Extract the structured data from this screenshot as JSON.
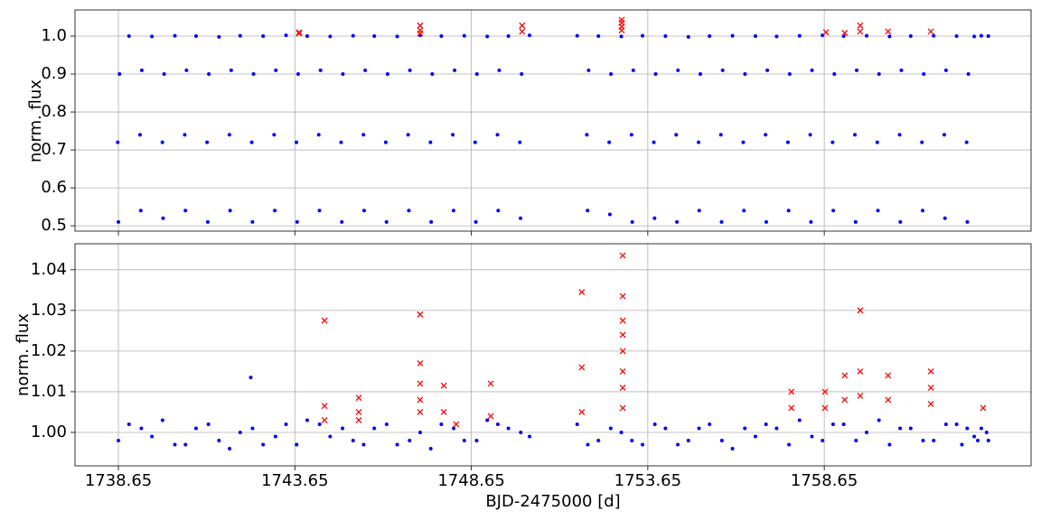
{
  "chart_data": [
    {
      "type": "scatter",
      "ylabel": "norm. flux",
      "xlim": [
        1737.42,
        1764.51
      ],
      "ylim": [
        0.486,
        1.069
      ],
      "xticks": [
        1738.65,
        1743.65,
        1748.65,
        1753.65,
        1758.65
      ],
      "show_xtick_labels": false,
      "yticks": [
        0.5,
        0.6,
        0.7,
        0.8,
        0.9,
        {
          "value": 1,
          "label": "1.0"
        }
      ],
      "grid": true,
      "series": [
        {
          "color": "#0000ff",
          "marker": "dot",
          "x": [
            1738.65,
            1739.283,
            1739.916,
            1740.549,
            1741.182,
            1741.815,
            1742.448,
            1743.081,
            1743.714,
            1744.347,
            1744.98,
            1745.613,
            1746.246,
            1746.879,
            1747.512,
            1748.145,
            1748.778,
            1749.411,
            1750.044,
            1751.943,
            1752.576,
            1753.209,
            1753.842,
            1754.475,
            1755.108,
            1755.741,
            1756.374,
            1757.007,
            1757.64,
            1758.273,
            1758.906,
            1759.539,
            1760.172,
            1760.805,
            1761.438,
            1762.071,
            1762.704,
            1738.63,
            1739.263,
            1739.896,
            1740.529,
            1741.162,
            1741.795,
            1742.428,
            1743.061,
            1743.694,
            1744.327,
            1744.96,
            1745.593,
            1746.226,
            1746.859,
            1747.492,
            1748.125,
            1748.758,
            1749.391,
            1750.024,
            1751.923,
            1752.556,
            1753.189,
            1753.822,
            1754.455,
            1755.088,
            1755.721,
            1756.354,
            1756.987,
            1757.62,
            1758.253,
            1758.886,
            1759.519,
            1760.152,
            1760.785,
            1761.418,
            1762.051,
            1762.684,
            1738.68,
            1739.313,
            1739.946,
            1740.579,
            1741.212,
            1741.845,
            1742.478,
            1743.111,
            1743.744,
            1744.377,
            1745.01,
            1745.643,
            1746.276,
            1746.909,
            1747.542,
            1748.175,
            1748.808,
            1749.441,
            1750.074,
            1751.973,
            1752.606,
            1753.239,
            1753.872,
            1754.505,
            1755.138,
            1755.771,
            1756.404,
            1757.037,
            1757.67,
            1758.303,
            1758.936,
            1759.569,
            1760.202,
            1760.835,
            1761.468,
            1762.101,
            1762.734,
            1738.95,
            1739.6,
            1740.25,
            1740.85,
            1741.5,
            1742.1,
            1742.75,
            1743.4,
            1744.0,
            1744.65,
            1745.3,
            1745.9,
            1746.55,
            1747.2,
            1747.8,
            1748.45,
            1749.1,
            1749.7,
            1750.3,
            1751.65,
            1752.25,
            1752.9,
            1753.5,
            1754.15,
            1754.8,
            1755.4,
            1756.05,
            1756.7,
            1757.3,
            1757.95,
            1758.6,
            1759.2,
            1759.85,
            1760.5,
            1761.1,
            1761.75,
            1762.4,
            1762.9,
            1763.1,
            1763.3
          ],
          "values": [
            0.51,
            0.54,
            0.52,
            0.54,
            0.51,
            0.54,
            0.51,
            0.54,
            0.51,
            0.54,
            0.51,
            0.54,
            0.51,
            0.54,
            0.51,
            0.54,
            0.51,
            0.54,
            0.52,
            0.54,
            0.53,
            0.51,
            0.52,
            0.51,
            0.54,
            0.51,
            0.54,
            0.51,
            0.54,
            0.51,
            0.54,
            0.51,
            0.54,
            0.51,
            0.54,
            0.52,
            0.51,
            0.72,
            0.74,
            0.72,
            0.74,
            0.72,
            0.74,
            0.72,
            0.74,
            0.72,
            0.74,
            0.72,
            0.74,
            0.72,
            0.74,
            0.72,
            0.74,
            0.72,
            0.74,
            0.72,
            0.74,
            0.72,
            0.74,
            0.72,
            0.74,
            0.72,
            0.74,
            0.72,
            0.74,
            0.72,
            0.74,
            0.72,
            0.74,
            0.72,
            0.74,
            0.72,
            0.74,
            0.72,
            0.9,
            0.91,
            0.9,
            0.91,
            0.9,
            0.91,
            0.9,
            0.91,
            0.9,
            0.91,
            0.9,
            0.91,
            0.9,
            0.91,
            0.9,
            0.91,
            0.9,
            0.91,
            0.9,
            0.91,
            0.9,
            0.91,
            0.9,
            0.91,
            0.9,
            0.91,
            0.9,
            0.91,
            0.9,
            0.91,
            0.9,
            0.91,
            0.9,
            0.91,
            0.9,
            0.91,
            0.9,
            1.0,
            0.999,
            1.001,
            1.0,
            0.998,
            1.001,
            1.0,
            1.002,
            1.0,
            0.999,
            1.001,
            1.0,
            0.999,
            1.002,
            1.0,
            1.001,
            0.999,
            1.0,
            1.002,
            1.001,
            1.0,
            0.999,
            1.001,
            1.0,
            0.998,
            1.0,
            1.001,
            1.0,
            0.999,
            1.001,
            1.002,
            1.0,
            1.001,
            0.999,
            1.0,
            1.001,
            1.0,
            0.999,
            1.001,
            1.0
          ]
        },
        {
          "color": "#ff0000",
          "marker": "x",
          "x": [
            1743.77,
            1743.77,
            1747.2,
            1747.2,
            1747.2,
            1750.09,
            1750.09,
            1752.91,
            1752.91,
            1752.91,
            1752.91,
            1758.7,
            1759.23,
            1759.67,
            1759.67,
            1760.46,
            1761.67
          ],
          "values": [
            1.01,
            1.007,
            1.028,
            1.015,
            1.007,
            1.028,
            1.012,
            1.043,
            1.035,
            1.025,
            1.015,
            1.01,
            1.008,
            1.028,
            1.012,
            1.012,
            1.012
          ]
        }
      ]
    },
    {
      "type": "scatter",
      "xlabel": "BJD-2475000 [d]",
      "ylabel": "norm. flux",
      "xlim": [
        1737.42,
        1764.51
      ],
      "ylim": [
        0.99178,
        1.0464
      ],
      "xticks": [
        1738.65,
        1743.65,
        1748.65,
        1753.65,
        1758.65
      ],
      "show_xtick_labels": true,
      "yticks": [
        {
          "value": 1,
          "label": "1.00"
        },
        1.01,
        1.02,
        1.03,
        1.04
      ],
      "grid": true,
      "series": [
        {
          "color": "#0000ff",
          "marker": "dot",
          "x": [
            1738.95,
            1739.6,
            1740.25,
            1740.85,
            1741.5,
            1742.1,
            1742.75,
            1743.4,
            1744.0,
            1744.65,
            1745.3,
            1745.9,
            1746.55,
            1747.2,
            1747.8,
            1748.45,
            1749.1,
            1749.7,
            1750.3,
            1751.65,
            1752.25,
            1752.9,
            1753.5,
            1754.15,
            1754.8,
            1755.4,
            1756.05,
            1756.7,
            1757.3,
            1757.95,
            1758.6,
            1759.2,
            1759.85,
            1760.5,
            1761.1,
            1761.75,
            1762.4,
            1762.9,
            1763.1,
            1763.3,
            1738.65,
            1739.3,
            1739.9,
            1740.55,
            1741.2,
            1741.8,
            1742.45,
            1743.1,
            1743.7,
            1744.35,
            1745.0,
            1745.6,
            1746.25,
            1746.9,
            1747.5,
            1748.15,
            1748.8,
            1749.4,
            1750.05,
            1751.95,
            1752.6,
            1753.2,
            1753.85,
            1754.5,
            1755.1,
            1755.75,
            1756.4,
            1757.0,
            1757.65,
            1758.3,
            1758.9,
            1759.55,
            1760.2,
            1760.8,
            1761.45,
            1762.1,
            1762.55,
            1762.7,
            1763.0,
            1763.25,
            1742.4
          ],
          "values": [
            1.002,
            0.999,
            0.997,
            1.001,
            0.998,
            1.0,
            0.997,
            1.002,
            1.003,
            0.999,
            0.998,
            1.001,
            0.997,
            1.0,
            1.002,
            0.998,
            1.003,
            1.001,
            0.999,
            1.002,
            0.998,
            1.0,
            0.997,
            1.001,
            0.998,
            1.002,
            0.996,
            0.999,
            1.001,
            1.003,
            0.998,
            1.002,
            1.0,
            0.997,
            1.001,
            0.998,
            1.002,
            0.999,
            1.001,
            0.998,
            0.998,
            1.001,
            1.003,
            0.997,
            1.002,
            0.996,
            1.001,
            0.999,
            0.997,
            1.002,
            1.001,
            0.997,
            1.002,
            0.998,
            0.996,
            1.001,
            0.998,
            1.002,
            1.0,
            0.997,
            1.001,
            0.998,
            1.002,
            0.997,
            1.001,
            0.998,
            1.001,
            1.002,
            0.997,
            0.999,
            1.002,
            0.998,
            1.003,
            1.001,
            0.998,
            1.002,
            0.997,
            1.001,
            0.998,
            1.0,
            1.0135
          ]
        },
        {
          "color": "#ff0000",
          "marker": "x",
          "x": [
            1744.49,
            1744.49,
            1744.49,
            1745.46,
            1745.46,
            1745.46,
            1747.2,
            1747.2,
            1747.2,
            1747.2,
            1747.2,
            1747.87,
            1747.87,
            1748.22,
            1749.2,
            1749.2,
            1751.78,
            1751.78,
            1751.78,
            1752.94,
            1752.94,
            1752.94,
            1752.94,
            1752.94,
            1752.94,
            1752.94,
            1752.94,
            1757.72,
            1757.72,
            1758.67,
            1758.67,
            1759.23,
            1759.23,
            1759.67,
            1759.67,
            1759.67,
            1760.46,
            1760.46,
            1761.67,
            1761.67,
            1761.67,
            1763.15
          ],
          "values": [
            1.0275,
            1.0065,
            1.003,
            1.0085,
            1.005,
            1.003,
            1.029,
            1.017,
            1.012,
            1.008,
            1.005,
            1.0115,
            1.005,
            1.002,
            1.012,
            1.004,
            1.0345,
            1.016,
            1.005,
            1.0435,
            1.0335,
            1.0275,
            1.024,
            1.02,
            1.015,
            1.011,
            1.006,
            1.01,
            1.006,
            1.01,
            1.006,
            1.014,
            1.008,
            1.03,
            1.015,
            1.009,
            1.014,
            1.008,
            1.015,
            1.011,
            1.007,
            1.006
          ]
        }
      ]
    }
  ]
}
